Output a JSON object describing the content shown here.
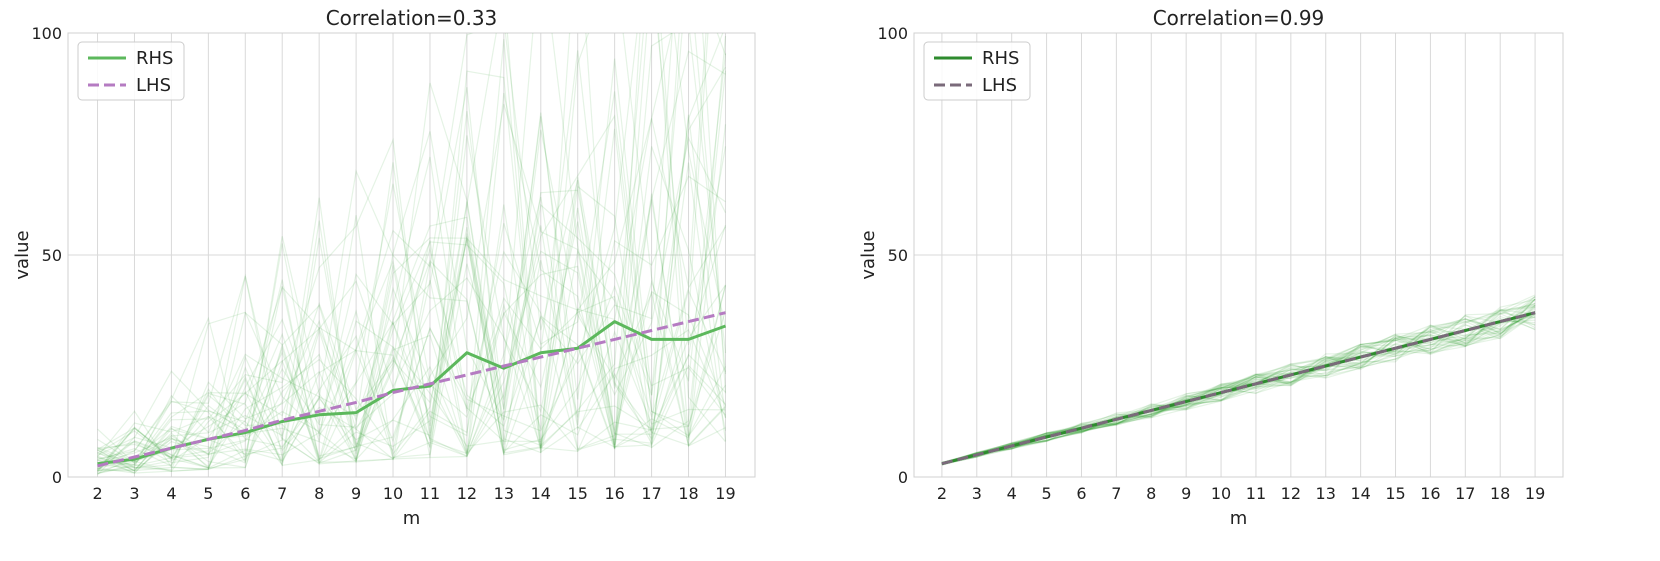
{
  "chart_data": [
    {
      "type": "line",
      "title": "Correlation=0.33",
      "xlabel": "m",
      "ylabel": "value",
      "xlim": [
        1.2,
        19.8
      ],
      "ylim": [
        0,
        100
      ],
      "xticks": [
        2,
        3,
        4,
        5,
        6,
        7,
        8,
        9,
        10,
        11,
        12,
        13,
        14,
        15,
        16,
        17,
        18,
        19
      ],
      "yticks": [
        0,
        50,
        100
      ],
      "grid": true,
      "legend_position": "top-left",
      "background_lines": {
        "count": 40,
        "color": "#2ca02c",
        "opacity": 0.12,
        "spread": "high"
      },
      "x": [
        2,
        3,
        4,
        5,
        6,
        7,
        8,
        9,
        10,
        11,
        12,
        13,
        14,
        15,
        16,
        17,
        18,
        19
      ],
      "series": [
        {
          "name": "RHS",
          "style": "solid",
          "color": "#5cb85c",
          "values": [
            3,
            4,
            6.5,
            8.5,
            10,
            12.5,
            14,
            14.5,
            19.5,
            20.5,
            28,
            24.5,
            28,
            29,
            35,
            31,
            31,
            34
          ]
        },
        {
          "name": "LHS",
          "style": "dashed",
          "color": "#b57bc2",
          "values": [
            2.5,
            4.5,
            6.5,
            8.5,
            10.5,
            12.8,
            14.8,
            16.8,
            19,
            21,
            23,
            25,
            27,
            29,
            31,
            33,
            35,
            37
          ]
        }
      ]
    },
    {
      "type": "line",
      "title": "Correlation=0.99",
      "xlabel": "m",
      "ylabel": "value",
      "xlim": [
        1.2,
        19.8
      ],
      "ylim": [
        0,
        100
      ],
      "xticks": [
        2,
        3,
        4,
        5,
        6,
        7,
        8,
        9,
        10,
        11,
        12,
        13,
        14,
        15,
        16,
        17,
        18,
        19
      ],
      "yticks": [
        0,
        50,
        100
      ],
      "grid": true,
      "legend_position": "top-left",
      "background_lines": {
        "count": 40,
        "color": "#2ca02c",
        "opacity": 0.12,
        "spread": "low"
      },
      "x": [
        2,
        3,
        4,
        5,
        6,
        7,
        8,
        9,
        10,
        11,
        12,
        13,
        14,
        15,
        16,
        17,
        18,
        19
      ],
      "series": [
        {
          "name": "RHS",
          "style": "solid",
          "color": "#2e8b2e",
          "values": [
            3,
            5,
            7,
            9,
            11,
            13,
            15,
            17,
            19,
            21,
            23,
            25,
            27,
            29,
            31,
            33,
            35,
            37
          ]
        },
        {
          "name": "LHS",
          "style": "dashed",
          "color": "#7a6a7a",
          "values": [
            3,
            5,
            7,
            9,
            11,
            13,
            15,
            17,
            19,
            21,
            23,
            25,
            27,
            29,
            31,
            33,
            35,
            37
          ]
        }
      ]
    }
  ]
}
